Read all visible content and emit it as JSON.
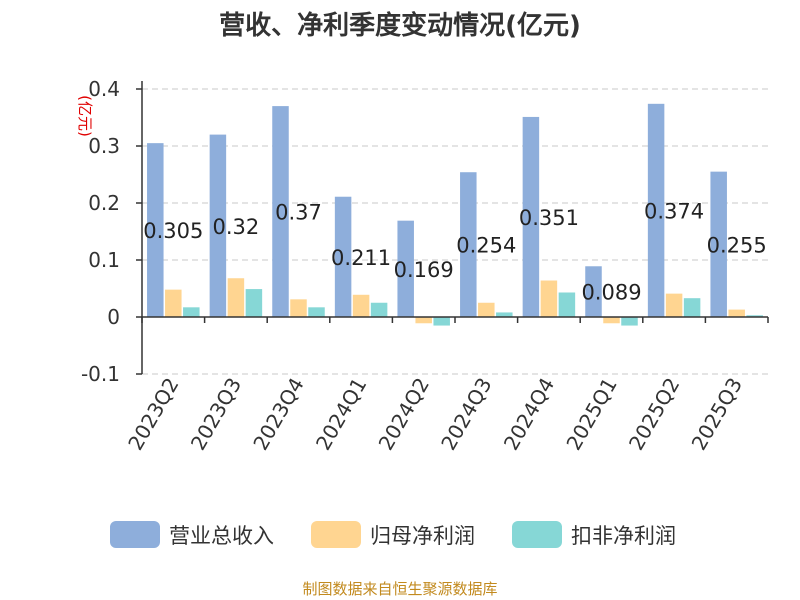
{
  "chart_data": {
    "type": "bar",
    "title": "营收、净利季度变动情况(亿元)",
    "unit_label": "(亿元)",
    "categories": [
      "2023Q2",
      "2023Q3",
      "2023Q4",
      "2024Q1",
      "2024Q2",
      "2024Q3",
      "2024Q4",
      "2025Q1",
      "2025Q2",
      "2025Q3"
    ],
    "series": [
      {
        "name": "营业总收入",
        "color": "#8eaedb",
        "values": [
          0.305,
          0.32,
          0.37,
          0.211,
          0.169,
          0.254,
          0.351,
          0.089,
          0.374,
          0.255
        ]
      },
      {
        "name": "归母净利润",
        "color": "#ffd591",
        "values": [
          0.048,
          0.068,
          0.031,
          0.039,
          -0.011,
          0.025,
          0.064,
          -0.011,
          0.041,
          0.013
        ]
      },
      {
        "name": "扣非净利润",
        "color": "#86d7d6",
        "values": [
          0.017,
          0.049,
          0.017,
          0.025,
          -0.015,
          0.008,
          0.043,
          -0.015,
          0.033,
          0.003
        ]
      }
    ],
    "data_labels": [
      "0.305",
      "0.32",
      "0.37",
      "0.211",
      "0.169",
      "0.254",
      "0.351",
      "0.089",
      "0.374",
      "0.255"
    ],
    "y_ticks": [
      "0.4",
      "0.3",
      "0.2",
      "0.1",
      "0",
      "-0.1"
    ],
    "ylim": [
      -0.1,
      0.4
    ],
    "grid": true,
    "legend_position": "bottom"
  },
  "source": "制图数据来自恒生聚源数据库"
}
